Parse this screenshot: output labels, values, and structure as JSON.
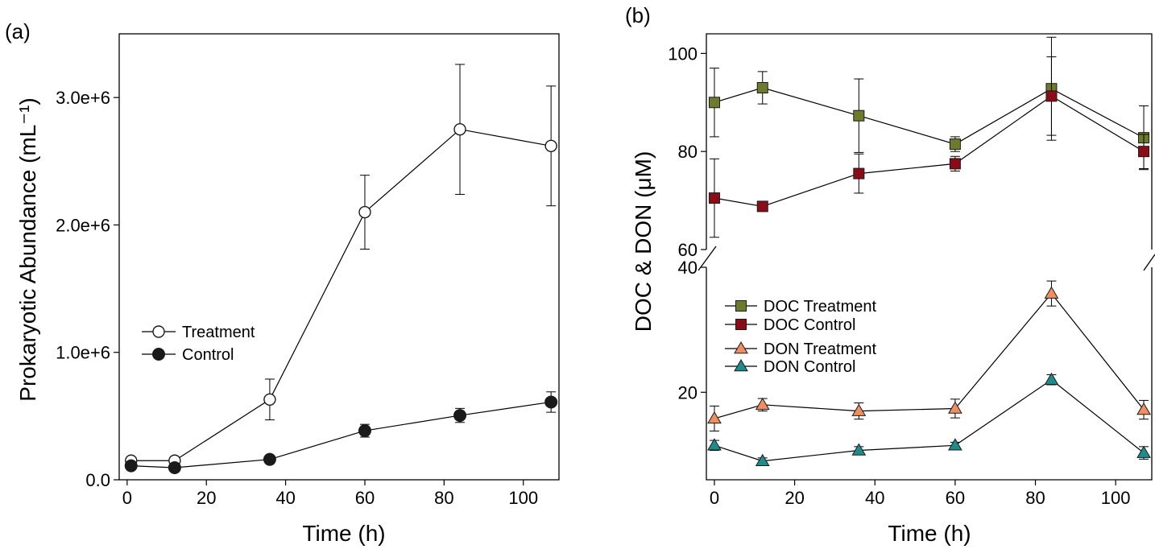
{
  "chart_data": [
    {
      "type": "line",
      "panel_label": "(a)",
      "xlabel": "Time (h)",
      "ylabel": "Prokaryotic Abundance (mL⁻¹)",
      "xlim": [
        -2,
        109
      ],
      "ylim": [
        0,
        3500000
      ],
      "xticks": [
        0,
        20,
        40,
        60,
        80,
        100
      ],
      "yticks": [
        0,
        1000000,
        2000000,
        3000000
      ],
      "ytick_labels": [
        "0.0",
        "1.0e+6",
        "2.0e+6",
        "3.0e+6"
      ],
      "legend_position": "center-left",
      "x": [
        1,
        12,
        36,
        60,
        84,
        107
      ],
      "series": [
        {
          "name": "Treatment",
          "marker": "open-circle",
          "color": "#1a1a1a",
          "values": [
            150000,
            150000,
            630000,
            2100000,
            2750000,
            2620000
          ],
          "errors": [
            20000,
            20000,
            160000,
            290000,
            510000,
            470000
          ]
        },
        {
          "name": "Control",
          "marker": "filled-circle",
          "color": "#1a1a1a",
          "values": [
            110000,
            95000,
            160000,
            385000,
            505000,
            610000
          ],
          "errors": [
            10000,
            10000,
            15000,
            50000,
            55000,
            80000
          ]
        }
      ]
    },
    {
      "type": "line",
      "panel_label": "(b)",
      "xlabel": "Time (h)",
      "ylabel": "DOC & DON (μM)",
      "xlim": [
        -2,
        109
      ],
      "broken_axis": true,
      "upper_ylim": [
        60,
        104
      ],
      "lower_ylim": [
        6,
        40
      ],
      "xticks": [
        0,
        20,
        40,
        60,
        80,
        100
      ],
      "upper_yticks": [
        60,
        80,
        100
      ],
      "lower_yticks": [
        20,
        40
      ],
      "legend_position": "left-lower-segment",
      "x": [
        0,
        12,
        36,
        60,
        84,
        107
      ],
      "series": [
        {
          "name": "DOC Treatment",
          "marker": "square",
          "color": "#6d7b2c",
          "values": [
            90,
            93,
            87.3,
            81.5,
            92.8,
            82.8
          ],
          "errors": [
            7,
            3.3,
            7.5,
            1.5,
            10.5,
            6.5
          ]
        },
        {
          "name": "DOC Control",
          "marker": "square",
          "color": "#8b0b16",
          "values": [
            70.5,
            68.8,
            75.5,
            77.5,
            91.3,
            80.0
          ],
          "errors": [
            8,
            0,
            4,
            1.5,
            8,
            3.5
          ]
        },
        {
          "name": "DON Treatment",
          "marker": "triangle",
          "color": "#ef8e5f",
          "values": [
            15.8,
            18.0,
            17.0,
            17.4,
            35.8,
            17.2
          ],
          "errors": [
            2,
            1,
            1.3,
            1.5,
            2,
            1.5
          ]
        },
        {
          "name": "DON Control",
          "marker": "triangle",
          "color": "#1f8b8b",
          "values": [
            11.5,
            9.0,
            10.7,
            11.5,
            22.0,
            10.3
          ],
          "errors": [
            0.8,
            0.5,
            0.6,
            0.5,
            0.8,
            1.0
          ]
        }
      ]
    }
  ]
}
